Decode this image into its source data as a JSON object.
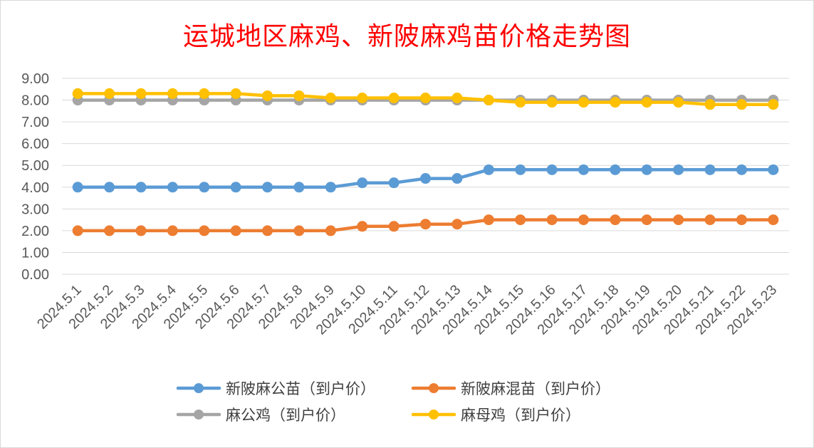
{
  "chart_data": {
    "type": "line",
    "title": "运城地区麻鸡、新陂麻鸡苗价格走势图",
    "xlabel": "",
    "ylabel": "",
    "ylim": [
      0,
      9
    ],
    "ytick_step": 1,
    "grid": "horizontal",
    "legend_position": "bottom",
    "categories": [
      "2024.5.1",
      "2024.5.2",
      "2024.5.3",
      "2024.5.4",
      "2024.5.5",
      "2024.5.6",
      "2024.5.7",
      "2024.5.8",
      "2024.5.9",
      "2024.5.10",
      "2024.5.11",
      "2024.5.12",
      "2024.5.13",
      "2024.5.14",
      "2024.5.15",
      "2024.5.16",
      "2024.5.17",
      "2024.5.18",
      "2024.5.19",
      "2024.5.20",
      "2024.5.21",
      "2024.5.22",
      "2024.5.23"
    ],
    "yticks": [
      "0.00",
      "1.00",
      "2.00",
      "3.00",
      "4.00",
      "5.00",
      "6.00",
      "7.00",
      "8.00",
      "9.00"
    ],
    "series": [
      {
        "name": "新陂麻公苗（到户价）",
        "color": "#5b9bd5",
        "values": [
          4.0,
          4.0,
          4.0,
          4.0,
          4.0,
          4.0,
          4.0,
          4.0,
          4.0,
          4.2,
          4.2,
          4.4,
          4.4,
          4.8,
          4.8,
          4.8,
          4.8,
          4.8,
          4.8,
          4.8,
          4.8,
          4.8,
          4.8
        ]
      },
      {
        "name": "新陂麻混苗（到户价）",
        "color": "#ed7d31",
        "values": [
          2.0,
          2.0,
          2.0,
          2.0,
          2.0,
          2.0,
          2.0,
          2.0,
          2.0,
          2.2,
          2.2,
          2.3,
          2.3,
          2.5,
          2.5,
          2.5,
          2.5,
          2.5,
          2.5,
          2.5,
          2.5,
          2.5,
          2.5
        ]
      },
      {
        "name": "麻公鸡（到户价）",
        "color": "#a5a5a5",
        "values": [
          8.0,
          8.0,
          8.0,
          8.0,
          8.0,
          8.0,
          8.0,
          8.0,
          8.0,
          8.0,
          8.0,
          8.0,
          8.0,
          8.0,
          8.0,
          8.0,
          8.0,
          8.0,
          8.0,
          8.0,
          8.0,
          8.0,
          8.0
        ]
      },
      {
        "name": "麻母鸡（到户价）",
        "color": "#ffc000",
        "values": [
          8.3,
          8.3,
          8.3,
          8.3,
          8.3,
          8.3,
          8.2,
          8.2,
          8.1,
          8.1,
          8.1,
          8.1,
          8.1,
          8.0,
          7.9,
          7.9,
          7.9,
          7.9,
          7.9,
          7.9,
          7.8,
          7.8,
          7.8
        ]
      }
    ]
  }
}
